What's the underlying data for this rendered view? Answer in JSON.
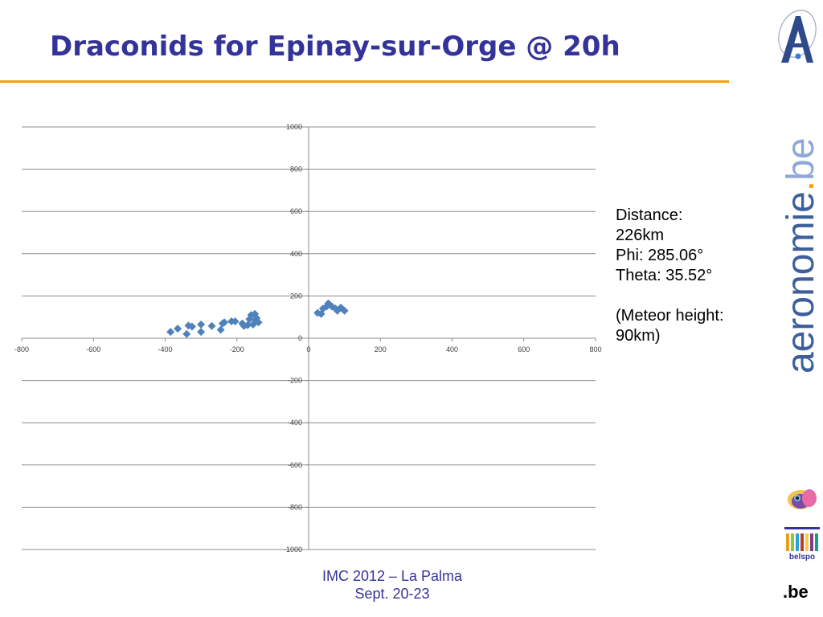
{
  "slide": {
    "title": "Draconids for Epinay-sur-Orge @ 20h",
    "notes": [
      "Distance:",
      "226km",
      "Phi: 285.06°",
      "Theta: 35.52°",
      "",
      "(Meteor height:",
      "90km)"
    ],
    "footer": [
      "IMC 2012 – La Palma",
      "Sept. 20-23"
    ],
    "brand": {
      "domain": "aeronomie",
      "dot": ".",
      "tld": "be",
      "belspo_label": "belspo",
      "be_label": ".be"
    },
    "colors": {
      "title": "#333399",
      "rule": "#f0a30a",
      "marker": "#4f81bd",
      "brand_blue": "#3d5f9e",
      "brand_orange": "#f0a30a"
    }
  },
  "chart_data": {
    "type": "scatter",
    "xlim": [
      -800,
      800
    ],
    "ylim": [
      -1000,
      1000
    ],
    "x_ticks": [
      -800,
      -600,
      -400,
      -200,
      0,
      200,
      400,
      600,
      800
    ],
    "y_ticks": [
      -1000,
      -800,
      -600,
      -400,
      -200,
      0,
      200,
      400,
      600,
      800,
      1000
    ],
    "grid": "horizontal",
    "marker": "diamond",
    "points": [
      {
        "x": -385,
        "y": 30
      },
      {
        "x": -365,
        "y": 45
      },
      {
        "x": -340,
        "y": 20
      },
      {
        "x": -335,
        "y": 60
      },
      {
        "x": -325,
        "y": 55
      },
      {
        "x": -300,
        "y": 30
      },
      {
        "x": -300,
        "y": 65
      },
      {
        "x": -270,
        "y": 58
      },
      {
        "x": -245,
        "y": 40
      },
      {
        "x": -240,
        "y": 70
      },
      {
        "x": -235,
        "y": 75
      },
      {
        "x": -215,
        "y": 80
      },
      {
        "x": -205,
        "y": 80
      },
      {
        "x": -185,
        "y": 70
      },
      {
        "x": -180,
        "y": 58
      },
      {
        "x": -170,
        "y": 62
      },
      {
        "x": -165,
        "y": 90
      },
      {
        "x": -160,
        "y": 110
      },
      {
        "x": -155,
        "y": 65
      },
      {
        "x": -150,
        "y": 115
      },
      {
        "x": -148,
        "y": 88
      },
      {
        "x": -145,
        "y": 95
      },
      {
        "x": -140,
        "y": 75
      },
      {
        "x": 25,
        "y": 120
      },
      {
        "x": 35,
        "y": 115
      },
      {
        "x": 40,
        "y": 140
      },
      {
        "x": 50,
        "y": 150
      },
      {
        "x": 55,
        "y": 165
      },
      {
        "x": 65,
        "y": 150
      },
      {
        "x": 75,
        "y": 140
      },
      {
        "x": 80,
        "y": 130
      },
      {
        "x": 90,
        "y": 145
      },
      {
        "x": 100,
        "y": 130
      }
    ]
  }
}
